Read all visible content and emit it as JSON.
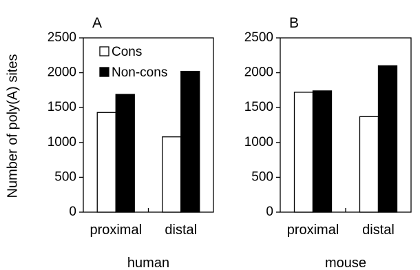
{
  "ylabel": "Number of poly(A) sites",
  "legend": [
    {
      "label": "Cons",
      "color": "#ffffff"
    },
    {
      "label": "Non-cons",
      "color": "#000000"
    }
  ],
  "chart_data": [
    {
      "type": "bar",
      "panel": "A",
      "group_label": "human",
      "categories": [
        "proximal",
        "distal"
      ],
      "series": [
        {
          "name": "Cons",
          "color": "#ffffff",
          "values": [
            1430,
            1080
          ]
        },
        {
          "name": "Non-cons",
          "color": "#000000",
          "values": [
            1690,
            2020
          ]
        }
      ],
      "ylabel": "Number of poly(A) sites",
      "ylim": [
        0,
        2500
      ],
      "yticks": [
        0,
        500,
        1000,
        1500,
        2000,
        2500
      ],
      "legend": "top-left",
      "grid": false
    },
    {
      "type": "bar",
      "panel": "B",
      "group_label": "mouse",
      "categories": [
        "proximal",
        "distal"
      ],
      "series": [
        {
          "name": "Cons",
          "color": "#ffffff",
          "values": [
            1720,
            1370
          ]
        },
        {
          "name": "Non-cons",
          "color": "#000000",
          "values": [
            1740,
            2100
          ]
        }
      ],
      "ylim": [
        0,
        2500
      ],
      "yticks": [
        0,
        500,
        1000,
        1500,
        2000,
        2500
      ],
      "grid": false
    }
  ]
}
